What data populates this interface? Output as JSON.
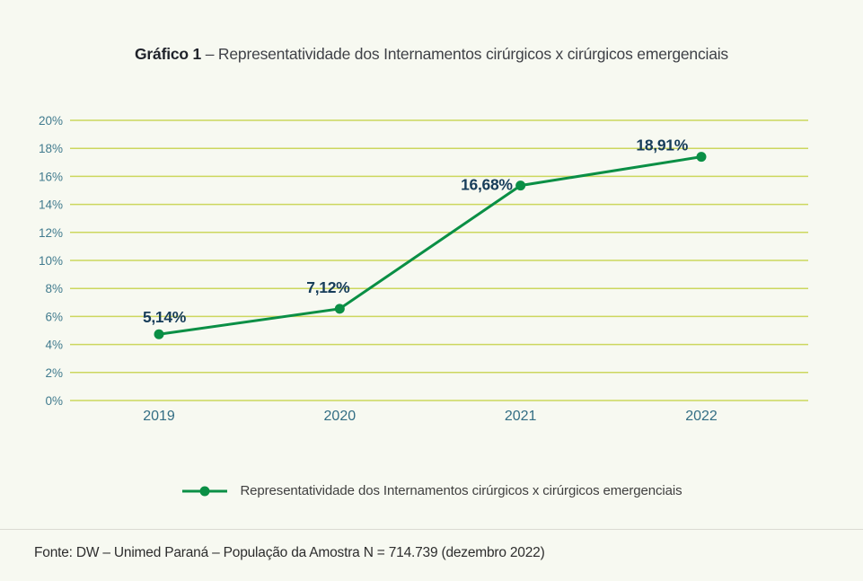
{
  "title": {
    "prefix": "Gráfico 1",
    "rest": " – Representatividade dos Internamentos cirúrgicos x cirúrgicos emergenciais"
  },
  "chart_data": {
    "type": "line",
    "categories": [
      "2019",
      "2020",
      "2021",
      "2022"
    ],
    "series": [
      {
        "name": "Representatividade dos Internamentos cirúrgicos x cirúrgicos emergenciais",
        "values": [
          5.14,
          7.12,
          16.68,
          18.91
        ],
        "data_labels": [
          "5,14%",
          "7,12%",
          "16,68%",
          "18,91%"
        ]
      }
    ],
    "title": "Gráfico 1 – Representatividade dos Internamentos cirúrgicos x cirúrgicos emergenciais",
    "xlabel": "",
    "ylabel": "",
    "ylim": [
      0,
      20
    ],
    "ytick_step": 2,
    "ytick_labels": [
      "0%",
      "2%",
      "4%",
      "6%",
      "8%",
      "10%",
      "12%",
      "14%",
      "16%",
      "18%",
      "20%"
    ],
    "grid": true,
    "legend_position": "bottom"
  },
  "legend": {
    "label": "Representatividade dos Internamentos cirúrgicos x cirúrgicos emergenciais"
  },
  "footer": {
    "source": "Fonte: DW – Unimed Paraná – População da Amostra N = 714.739 (dezembro 2022)"
  },
  "colors": {
    "background": "#f7f9f1",
    "gridline": "#ccd75e",
    "line": "#0a8f45",
    "point": "#0a8f45",
    "data_label": "#173d5a",
    "ytick": "#417b8e",
    "xtick": "#336e84",
    "title_prefix": "#20232b",
    "title_text": "#3f4147",
    "legend_text": "#404040",
    "footer_text": "#2d2d2d",
    "divider": "#dbdbd3"
  }
}
